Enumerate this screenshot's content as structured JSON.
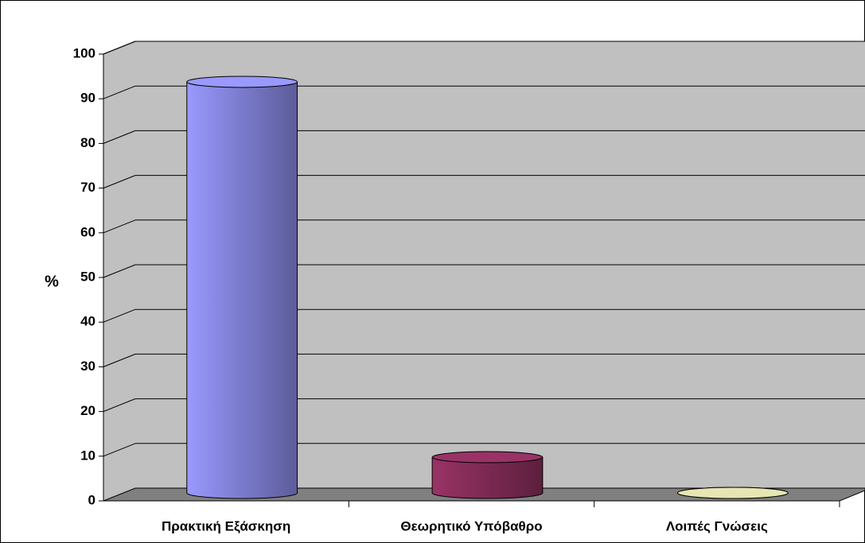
{
  "chart_data": {
    "type": "bar3d",
    "y_label": "%",
    "categories": [
      "Πρακτική Εξάσκηση",
      "Θεωρητικό Υπόβαθρο",
      "Λοιπές Γνώσεις"
    ],
    "values": [
      92,
      8,
      0
    ],
    "colors": [
      "#9999ff",
      "#993366",
      "#e6e6b3"
    ],
    "ylim": [
      0,
      100
    ],
    "yticks": [
      0,
      10,
      20,
      30,
      40,
      50,
      60,
      70,
      80,
      90,
      100
    ],
    "grid": true
  }
}
